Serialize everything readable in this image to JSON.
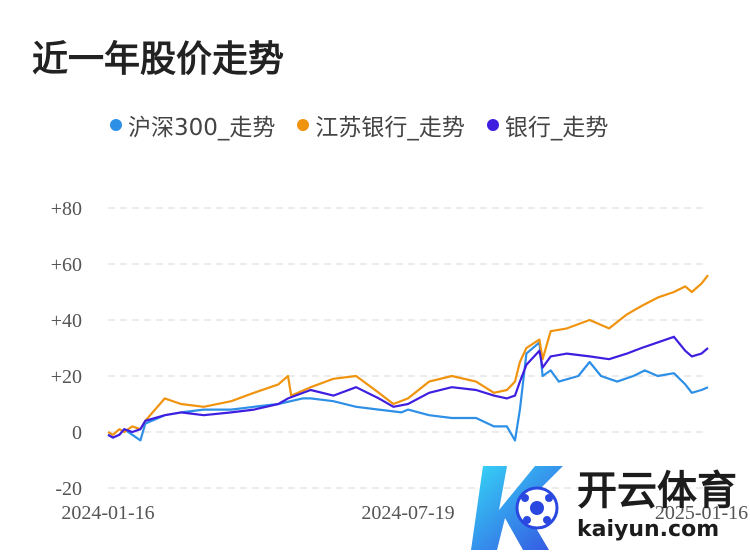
{
  "title": "近一年股价走势",
  "watermark": {
    "brand_cn": "开云体育",
    "brand_en": "kaiyun.com"
  },
  "chart_data": {
    "type": "line",
    "title": "近一年股价走势",
    "ylim": [
      -20,
      80
    ],
    "yticks": [
      -20,
      0,
      20,
      40,
      60,
      80
    ],
    "ytick_labels": [
      "-20",
      "0",
      "+20",
      "+40",
      "+60",
      "+80"
    ],
    "xlim": [
      "2024-01-16",
      "2025-01-20"
    ],
    "xticks": [
      "2024-01-16",
      "2024-07-19",
      "2025-01-16"
    ],
    "grid": true,
    "legend_position": "top",
    "series": [
      {
        "name": "沪深300_走势",
        "color": "#2e8fe6",
        "points": [
          [
            "2024-01-16",
            -1
          ],
          [
            "2024-01-19",
            -2
          ],
          [
            "2024-01-23",
            -1
          ],
          [
            "2024-01-26",
            1
          ],
          [
            "2024-01-31",
            -1
          ],
          [
            "2024-02-05",
            -3
          ],
          [
            "2024-02-08",
            3
          ],
          [
            "2024-02-20",
            6
          ],
          [
            "2024-03-01",
            7
          ],
          [
            "2024-03-15",
            8
          ],
          [
            "2024-04-01",
            8
          ],
          [
            "2024-04-15",
            9
          ],
          [
            "2024-04-30",
            10
          ],
          [
            "2024-05-15",
            12
          ],
          [
            "2024-05-20",
            12
          ],
          [
            "2024-06-03",
            11
          ],
          [
            "2024-06-17",
            9
          ],
          [
            "2024-07-01",
            8
          ],
          [
            "2024-07-15",
            7
          ],
          [
            "2024-07-19",
            8
          ],
          [
            "2024-08-01",
            6
          ],
          [
            "2024-08-15",
            5
          ],
          [
            "2024-08-30",
            5
          ],
          [
            "2024-09-10",
            2
          ],
          [
            "2024-09-18",
            2
          ],
          [
            "2024-09-23",
            -3
          ],
          [
            "2024-09-26",
            8
          ],
          [
            "2024-09-30",
            28
          ],
          [
            "2024-10-08",
            32
          ],
          [
            "2024-10-10",
            20
          ],
          [
            "2024-10-15",
            22
          ],
          [
            "2024-10-20",
            18
          ],
          [
            "2024-11-01",
            20
          ],
          [
            "2024-11-08",
            25
          ],
          [
            "2024-11-15",
            20
          ],
          [
            "2024-11-25",
            18
          ],
          [
            "2024-12-05",
            20
          ],
          [
            "2024-12-12",
            22
          ],
          [
            "2024-12-20",
            20
          ],
          [
            "2024-12-30",
            21
          ],
          [
            "2025-01-06",
            17
          ],
          [
            "2025-01-10",
            14
          ],
          [
            "2025-01-16",
            15
          ],
          [
            "2025-01-20",
            16
          ]
        ]
      },
      {
        "name": "江苏银行_走势",
        "color": "#f0930e",
        "points": [
          [
            "2024-01-16",
            0
          ],
          [
            "2024-01-19",
            -1
          ],
          [
            "2024-01-23",
            1
          ],
          [
            "2024-01-26",
            0
          ],
          [
            "2024-01-31",
            2
          ],
          [
            "2024-02-05",
            1
          ],
          [
            "2024-02-08",
            4
          ],
          [
            "2024-02-20",
            12
          ],
          [
            "2024-03-01",
            10
          ],
          [
            "2024-03-15",
            9
          ],
          [
            "2024-04-01",
            11
          ],
          [
            "2024-04-15",
            14
          ],
          [
            "2024-04-30",
            17
          ],
          [
            "2024-05-06",
            20
          ],
          [
            "2024-05-08",
            13
          ],
          [
            "2024-05-20",
            16
          ],
          [
            "2024-06-03",
            19
          ],
          [
            "2024-06-17",
            20
          ],
          [
            "2024-07-01",
            14
          ],
          [
            "2024-07-10",
            10
          ],
          [
            "2024-07-19",
            12
          ],
          [
            "2024-08-01",
            18
          ],
          [
            "2024-08-15",
            20
          ],
          [
            "2024-08-30",
            18
          ],
          [
            "2024-09-10",
            14
          ],
          [
            "2024-09-18",
            15
          ],
          [
            "2024-09-23",
            18
          ],
          [
            "2024-09-26",
            25
          ],
          [
            "2024-09-30",
            30
          ],
          [
            "2024-10-08",
            33
          ],
          [
            "2024-10-10",
            26
          ],
          [
            "2024-10-15",
            36
          ],
          [
            "2024-10-25",
            37
          ],
          [
            "2024-11-08",
            40
          ],
          [
            "2024-11-20",
            37
          ],
          [
            "2024-12-01",
            42
          ],
          [
            "2024-12-10",
            45
          ],
          [
            "2024-12-20",
            48
          ],
          [
            "2024-12-30",
            50
          ],
          [
            "2025-01-06",
            52
          ],
          [
            "2025-01-10",
            50
          ],
          [
            "2025-01-16",
            53
          ],
          [
            "2025-01-20",
            56
          ]
        ]
      },
      {
        "name": "银行_走势",
        "color": "#3f1ee0",
        "points": [
          [
            "2024-01-16",
            -1
          ],
          [
            "2024-01-19",
            -2
          ],
          [
            "2024-01-23",
            -1
          ],
          [
            "2024-01-26",
            1
          ],
          [
            "2024-01-31",
            0
          ],
          [
            "2024-02-05",
            1
          ],
          [
            "2024-02-08",
            4
          ],
          [
            "2024-02-20",
            6
          ],
          [
            "2024-03-01",
            7
          ],
          [
            "2024-03-15",
            6
          ],
          [
            "2024-04-01",
            7
          ],
          [
            "2024-04-15",
            8
          ],
          [
            "2024-04-30",
            10
          ],
          [
            "2024-05-06",
            12
          ],
          [
            "2024-05-20",
            15
          ],
          [
            "2024-06-03",
            13
          ],
          [
            "2024-06-17",
            16
          ],
          [
            "2024-07-01",
            12
          ],
          [
            "2024-07-10",
            9
          ],
          [
            "2024-07-19",
            10
          ],
          [
            "2024-08-01",
            14
          ],
          [
            "2024-08-15",
            16
          ],
          [
            "2024-08-30",
            15
          ],
          [
            "2024-09-10",
            13
          ],
          [
            "2024-09-18",
            12
          ],
          [
            "2024-09-23",
            13
          ],
          [
            "2024-09-26",
            18
          ],
          [
            "2024-09-30",
            24
          ],
          [
            "2024-10-08",
            29
          ],
          [
            "2024-10-10",
            23
          ],
          [
            "2024-10-15",
            27
          ],
          [
            "2024-10-25",
            28
          ],
          [
            "2024-11-08",
            27
          ],
          [
            "2024-11-20",
            26
          ],
          [
            "2024-12-01",
            28
          ],
          [
            "2024-12-10",
            30
          ],
          [
            "2024-12-20",
            32
          ],
          [
            "2024-12-30",
            34
          ],
          [
            "2025-01-06",
            29
          ],
          [
            "2025-01-10",
            27
          ],
          [
            "2025-01-16",
            28
          ],
          [
            "2025-01-20",
            30
          ]
        ]
      }
    ]
  }
}
